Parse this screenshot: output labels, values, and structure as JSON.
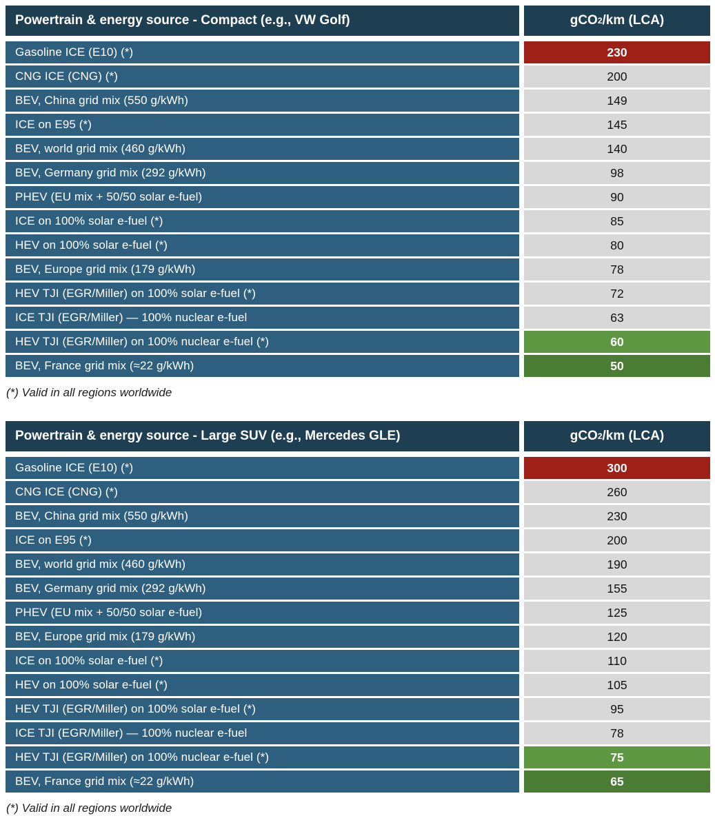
{
  "colors": {
    "header_bg": "#1e3e52",
    "row_label_bg": "#2e5f7e",
    "value_default_bg": "#d8d8d8",
    "value_worst_bg": "#9e2016",
    "value_good_bg": "#5d9742",
    "value_best_bg": "#4a7c34",
    "header_text": "#ffffff",
    "value_text": "#121212"
  },
  "value_header": {
    "prefix": "gCO",
    "sub": "2",
    "suffix": "/km (LCA)"
  },
  "tables": [
    {
      "title": "Powertrain & energy source - Compact (e.g., VW Golf)",
      "footnote": "(*) Valid in all regions worldwide",
      "rows": [
        {
          "label": "Gasoline ICE (E10) (*)",
          "value": "230",
          "highlight": "worst"
        },
        {
          "label": "CNG ICE (CNG) (*)",
          "value": "200",
          "highlight": "none"
        },
        {
          "label": "BEV, China grid mix (550 g/kWh)",
          "value": "149",
          "highlight": "none"
        },
        {
          "label": "ICE on E95 (*)",
          "value": "145",
          "highlight": "none"
        },
        {
          "label": "BEV, world grid mix (460 g/kWh)",
          "value": "140",
          "highlight": "none"
        },
        {
          "label": "BEV, Germany grid mix (292 g/kWh)",
          "value": "98",
          "highlight": "none"
        },
        {
          "label": "PHEV (EU mix + 50/50 solar e-fuel)",
          "value": "90",
          "highlight": "none"
        },
        {
          "label": "ICE on 100% solar e-fuel (*)",
          "value": "85",
          "highlight": "none"
        },
        {
          "label": "HEV on 100% solar e-fuel (*)",
          "value": "80",
          "highlight": "none"
        },
        {
          "label": "BEV, Europe grid mix (179 g/kWh)",
          "value": "78",
          "highlight": "none"
        },
        {
          "label": "HEV TJI (EGR/Miller) on 100% solar e-fuel (*)",
          "value": "72",
          "highlight": "none"
        },
        {
          "label": "ICE TJI (EGR/Miller) — 100% nuclear e-fuel",
          "value": "63",
          "highlight": "none"
        },
        {
          "label": "HEV TJI (EGR/Miller) on 100% nuclear e-fuel (*)",
          "value": "60",
          "highlight": "good"
        },
        {
          "label": "BEV, France grid mix (≈22 g/kWh)",
          "value": "50",
          "highlight": "best"
        }
      ]
    },
    {
      "title": "Powertrain & energy source - Large SUV (e.g., Mercedes GLE)",
      "footnote": "(*) Valid in all regions worldwide",
      "rows": [
        {
          "label": "Gasoline ICE (E10) (*)",
          "value": "300",
          "highlight": "worst"
        },
        {
          "label": "CNG ICE (CNG) (*)",
          "value": "260",
          "highlight": "none"
        },
        {
          "label": "BEV, China grid mix (550 g/kWh)",
          "value": "230",
          "highlight": "none"
        },
        {
          "label": "ICE on E95 (*)",
          "value": "200",
          "highlight": "none"
        },
        {
          "label": "BEV, world grid mix (460 g/kWh)",
          "value": "190",
          "highlight": "none"
        },
        {
          "label": "BEV, Germany grid mix (292 g/kWh)",
          "value": "155",
          "highlight": "none"
        },
        {
          "label": "PHEV (EU mix + 50/50 solar e-fuel)",
          "value": "125",
          "highlight": "none"
        },
        {
          "label": "BEV, Europe grid mix (179 g/kWh)",
          "value": "120",
          "highlight": "none"
        },
        {
          "label": "ICE on 100% solar e-fuel (*)",
          "value": "110",
          "highlight": "none"
        },
        {
          "label": "HEV on 100% solar e-fuel (*)",
          "value": "105",
          "highlight": "none"
        },
        {
          "label": "HEV TJI (EGR/Miller) on 100% solar e-fuel (*)",
          "value": "95",
          "highlight": "none"
        },
        {
          "label": "ICE TJI (EGR/Miller) — 100% nuclear e-fuel",
          "value": "78",
          "highlight": "none"
        },
        {
          "label": "HEV TJI (EGR/Miller) on 100% nuclear e-fuel (*)",
          "value": "75",
          "highlight": "good"
        },
        {
          "label": "BEV, France grid mix (≈22 g/kWh)",
          "value": "65",
          "highlight": "best"
        }
      ]
    }
  ],
  "chart_data": [
    {
      "type": "table",
      "title": "Powertrain & energy source - Compact (e.g., VW Golf)",
      "value_column": "gCO2/km (LCA)",
      "categories": [
        "Gasoline ICE (E10) (*)",
        "CNG ICE (CNG) (*)",
        "BEV, China grid mix (550 g/kWh)",
        "ICE on E95 (*)",
        "BEV, world grid mix (460 g/kWh)",
        "BEV, Germany grid mix (292 g/kWh)",
        "PHEV (EU mix + 50/50 solar e-fuel)",
        "ICE on 100% solar e-fuel (*)",
        "HEV on 100% solar e-fuel (*)",
        "BEV, Europe grid mix (179 g/kWh)",
        "HEV TJI (EGR/Miller) on 100% solar e-fuel (*)",
        "ICE TJI (EGR/Miller) — 100% nuclear e-fuel",
        "HEV TJI (EGR/Miller) on 100% nuclear e-fuel (*)",
        "BEV, France grid mix (≈22 g/kWh)"
      ],
      "values": [
        230,
        200,
        149,
        145,
        140,
        98,
        90,
        85,
        80,
        78,
        72,
        63,
        60,
        50
      ],
      "highlighted_worst": {
        "category": "Gasoline ICE (E10) (*)",
        "value": 230,
        "color": "#9e2016"
      },
      "highlighted_best": [
        {
          "category": "HEV TJI (EGR/Miller) on 100% nuclear e-fuel (*)",
          "value": 60,
          "color": "#5d9742"
        },
        {
          "category": "BEV, France grid mix (≈22 g/kWh)",
          "value": 50,
          "color": "#4a7c34"
        }
      ],
      "footnote": "(*) Valid in all regions worldwide"
    },
    {
      "type": "table",
      "title": "Powertrain & energy source - Large SUV (e.g., Mercedes GLE)",
      "value_column": "gCO2/km (LCA)",
      "categories": [
        "Gasoline ICE (E10) (*)",
        "CNG ICE (CNG) (*)",
        "BEV, China grid mix (550 g/kWh)",
        "ICE on E95 (*)",
        "BEV, world grid mix (460 g/kWh)",
        "BEV, Germany grid mix (292 g/kWh)",
        "PHEV (EU mix + 50/50 solar e-fuel)",
        "BEV, Europe grid mix (179 g/kWh)",
        "ICE on 100% solar e-fuel (*)",
        "HEV on 100% solar e-fuel (*)",
        "HEV TJI (EGR/Miller) on 100% solar e-fuel (*)",
        "ICE TJI (EGR/Miller) — 100% nuclear e-fuel",
        "HEV TJI (EGR/Miller) on 100% nuclear e-fuel (*)",
        "BEV, France grid mix (≈22 g/kWh)"
      ],
      "values": [
        300,
        260,
        230,
        200,
        190,
        155,
        125,
        120,
        110,
        105,
        95,
        78,
        75,
        65
      ],
      "highlighted_worst": {
        "category": "Gasoline ICE (E10) (*)",
        "value": 300,
        "color": "#9e2016"
      },
      "highlighted_best": [
        {
          "category": "HEV TJI (EGR/Miller) on 100% nuclear e-fuel (*)",
          "value": 75,
          "color": "#5d9742"
        },
        {
          "category": "BEV, France grid mix (≈22 g/kWh)",
          "value": 65,
          "color": "#4a7c34"
        }
      ],
      "footnote": "(*) Valid in all regions worldwide"
    }
  ]
}
